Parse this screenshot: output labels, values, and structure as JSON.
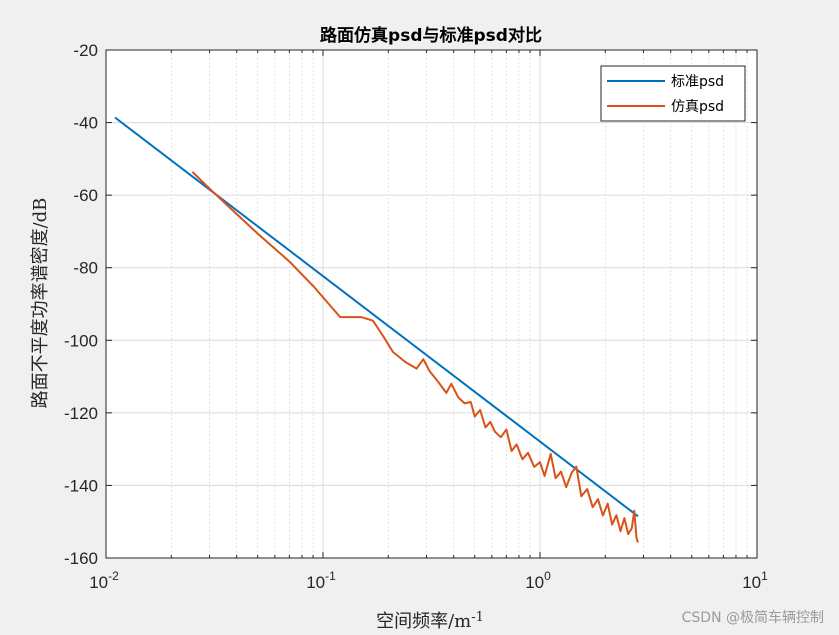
{
  "chart_data": {
    "type": "line",
    "title": "路面仿真psd与标准psd对比",
    "xlabel": "空间频率/m",
    "xlabel_sup": "-1",
    "ylabel": "路面不平度功率谱密度/dB",
    "xscale": "log",
    "xlim": [
      0.01,
      10
    ],
    "ylim": [
      -160,
      -20
    ],
    "x_ticks": [
      0.01,
      0.1,
      1,
      10
    ],
    "x_tick_labels": [
      {
        "base": "10",
        "exp": "-2"
      },
      {
        "base": "10",
        "exp": "-1"
      },
      {
        "base": "10",
        "exp": "0"
      },
      {
        "base": "10",
        "exp": "1"
      }
    ],
    "y_ticks": [
      -20,
      -40,
      -60,
      -80,
      -100,
      -120,
      -140,
      -160
    ],
    "y_tick_labels": [
      "-20",
      "-40",
      "-60",
      "-80",
      "-100",
      "-120",
      "-140",
      "-160"
    ],
    "grid": true,
    "legend_position": "top-right",
    "series": [
      {
        "name": "标准psd",
        "color": "#0072BD",
        "points": [
          [
            0.011,
            -38.6
          ],
          [
            2.83,
            -148.5
          ]
        ]
      },
      {
        "name": "仿真psd",
        "color": "#D95319",
        "points": [
          [
            0.025,
            -53.6
          ],
          [
            0.03,
            -58.2
          ],
          [
            0.04,
            -65.2
          ],
          [
            0.05,
            -70.6
          ],
          [
            0.07,
            -78.3
          ],
          [
            0.09,
            -85.0
          ],
          [
            0.12,
            -93.6
          ],
          [
            0.15,
            -93.6
          ],
          [
            0.17,
            -94.6
          ],
          [
            0.19,
            -99.0
          ],
          [
            0.21,
            -103.2
          ],
          [
            0.24,
            -106.0
          ],
          [
            0.27,
            -107.8
          ],
          [
            0.29,
            -105.2
          ],
          [
            0.31,
            -108.5
          ],
          [
            0.34,
            -111.5
          ],
          [
            0.37,
            -114.5
          ],
          [
            0.39,
            -112.0
          ],
          [
            0.42,
            -115.7
          ],
          [
            0.45,
            -117.4
          ],
          [
            0.48,
            -117.0
          ],
          [
            0.5,
            -121.0
          ],
          [
            0.53,
            -119.2
          ],
          [
            0.56,
            -124.0
          ],
          [
            0.59,
            -122.5
          ],
          [
            0.62,
            -125.2
          ],
          [
            0.66,
            -126.7
          ],
          [
            0.7,
            -124.6
          ],
          [
            0.74,
            -130.5
          ],
          [
            0.78,
            -128.7
          ],
          [
            0.83,
            -132.8
          ],
          [
            0.88,
            -131.0
          ],
          [
            0.94,
            -134.9
          ],
          [
            1.0,
            -133.6
          ],
          [
            1.05,
            -137.4
          ],
          [
            1.12,
            -131.3
          ],
          [
            1.18,
            -138.0
          ],
          [
            1.25,
            -136.2
          ],
          [
            1.32,
            -140.5
          ],
          [
            1.4,
            -136.5
          ],
          [
            1.47,
            -134.8
          ],
          [
            1.55,
            -143.0
          ],
          [
            1.65,
            -141.0
          ],
          [
            1.75,
            -146.0
          ],
          [
            1.85,
            -143.8
          ],
          [
            1.95,
            -148.3
          ],
          [
            2.05,
            -145.0
          ],
          [
            2.15,
            -150.8
          ],
          [
            2.25,
            -148.2
          ],
          [
            2.35,
            -152.6
          ],
          [
            2.45,
            -149.0
          ],
          [
            2.55,
            -153.4
          ],
          [
            2.65,
            -151.8
          ],
          [
            2.72,
            -147.0
          ],
          [
            2.78,
            -154.3
          ],
          [
            2.83,
            -155.7
          ]
        ]
      }
    ]
  },
  "watermark": "CSDN @极简车辆控制"
}
